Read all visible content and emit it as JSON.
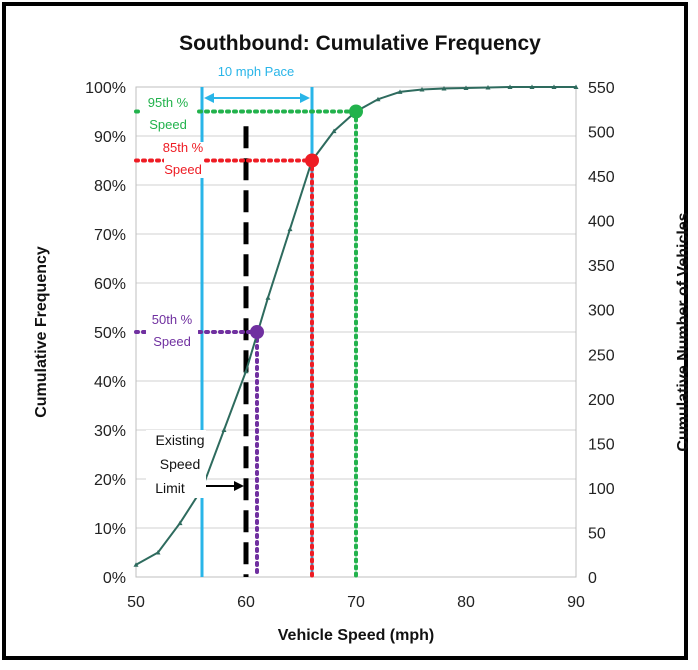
{
  "chart_data": {
    "type": "line",
    "title": "Southbound: Cumulative Frequency",
    "xlabel": "Vehicle Speed (mph)",
    "ylabel": "Cumulative Frequency",
    "y2label": "Cumulative Number of Vehicles",
    "xlim": [
      50,
      90
    ],
    "ylim": [
      0,
      100
    ],
    "y2lim": [
      0,
      550
    ],
    "x_ticks": [
      "50",
      "60",
      "70",
      "80",
      "90"
    ],
    "y_ticks": [
      "0%",
      "10%",
      "20%",
      "30%",
      "40%",
      "50%",
      "60%",
      "70%",
      "80%",
      "90%",
      "100%"
    ],
    "y2_ticks": [
      "0",
      "50",
      "100",
      "150",
      "200",
      "250",
      "300",
      "350",
      "400",
      "450",
      "500",
      "550"
    ],
    "grid": true,
    "colors": {
      "series": "#2e6b5e",
      "pace": "#29b5e8",
      "p95": "#22b24c",
      "p85": "#ee1c24",
      "p50": "#7030a0",
      "limit": "#000000"
    },
    "series": [
      {
        "x": [
          50,
          52,
          54,
          56,
          58,
          60,
          62,
          64,
          66,
          68,
          70,
          72,
          74,
          76,
          78,
          80,
          82,
          84,
          86,
          88,
          90
        ],
        "values": [
          2.5,
          5,
          11,
          18,
          30,
          42,
          57,
          71,
          85,
          91,
          95,
          97.5,
          99,
          99.5,
          99.7,
          99.8,
          99.9,
          100,
          100,
          100,
          100
        ]
      }
    ],
    "annotations": {
      "pace_label": "10 mph Pace",
      "pace_range": [
        56,
        66
      ],
      "p95": {
        "label_line1": "95th %",
        "label_line2": "Speed",
        "speed": 70,
        "percent": 95
      },
      "p85": {
        "label_line1": "85th %",
        "label_line2": "Speed",
        "speed": 66,
        "percent": 85
      },
      "p50": {
        "label_line1": "50th %",
        "label_line2": "Speed",
        "speed": 61,
        "percent": 50
      },
      "limit": {
        "label_line1": "Existing",
        "label_line2": "Speed",
        "label_line3": "Limit",
        "speed": 60
      }
    }
  }
}
